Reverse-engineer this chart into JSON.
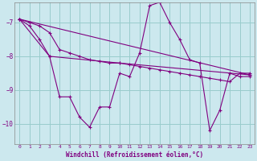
{
  "title": "",
  "xlabel": "Windchill (Refroidissement éolien,°C)",
  "ylabel": "",
  "bg_color": "#cce8ee",
  "line_color": "#800080",
  "grid_color": "#99cccc",
  "xlim": [
    -0.5,
    23.5
  ],
  "ylim": [
    -10.6,
    -6.4
  ],
  "yticks": [
    -10,
    -9,
    -8,
    -7
  ],
  "xticks": [
    0,
    1,
    2,
    3,
    4,
    5,
    6,
    7,
    8,
    9,
    10,
    11,
    12,
    13,
    14,
    15,
    16,
    17,
    18,
    19,
    20,
    21,
    22,
    23
  ],
  "lines": [
    {
      "x": [
        0,
        1,
        2,
        3,
        4,
        5,
        6,
        7,
        8,
        9,
        10,
        11,
        12,
        13,
        14,
        15,
        16,
        17,
        18,
        19,
        20,
        21,
        22,
        23
      ],
      "y": [
        -6.9,
        -7.1,
        -7.5,
        -8.0,
        -9.2,
        -9.2,
        -9.8,
        -10.1,
        -9.5,
        -9.5,
        -8.5,
        -8.6,
        -7.9,
        -6.5,
        -6.4,
        -7.0,
        -7.5,
        -8.1,
        -8.2,
        -10.2,
        -9.6,
        -8.5,
        -8.6,
        -8.6
      ]
    },
    {
      "x": [
        0,
        1,
        2,
        3,
        4,
        5,
        6,
        7,
        8,
        9,
        10,
        11,
        12,
        13,
        14,
        15,
        16,
        17,
        18,
        19,
        20,
        21,
        22,
        23
      ],
      "y": [
        -6.9,
        -7.0,
        -7.1,
        -7.3,
        -7.8,
        -7.9,
        -8.0,
        -8.1,
        -8.15,
        -8.2,
        -8.2,
        -8.25,
        -8.3,
        -8.35,
        -8.4,
        -8.45,
        -8.5,
        -8.55,
        -8.6,
        -8.65,
        -8.7,
        -8.75,
        -8.5,
        -8.5
      ]
    },
    {
      "x": [
        0,
        23
      ],
      "y": [
        -6.9,
        -8.55
      ]
    },
    {
      "x": [
        0,
        3,
        10,
        23
      ],
      "y": [
        -6.9,
        -8.0,
        -8.2,
        -8.55
      ]
    }
  ]
}
